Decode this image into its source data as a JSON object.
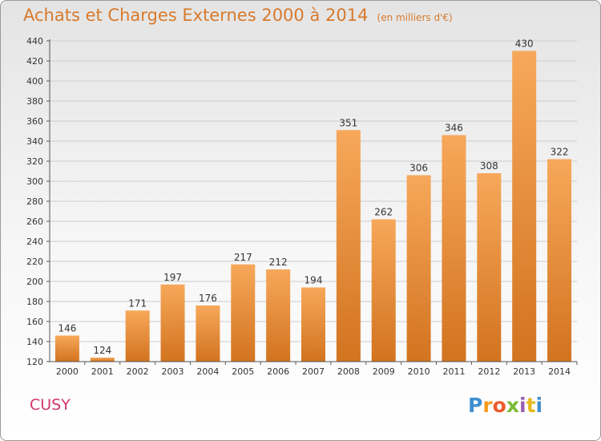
{
  "title": "Achats et Charges Externes 2000 à 2014",
  "subtitle": "(en milliers d'€)",
  "city": "CUSY",
  "logo": {
    "letters": [
      "P",
      "r",
      "o",
      "x",
      "i",
      "t",
      "i"
    ],
    "colors": [
      "#3f8fd0",
      "#f39a1e",
      "#ec5a2a",
      "#7bbb35",
      "#9a5fb0",
      "#e8b81e",
      "#3f8fd0"
    ]
  },
  "colors": {
    "bar_light": "#f7a85a",
    "bar_dark": "#d2731f",
    "title": "#d87a2c",
    "city": "#d3366f",
    "grid": "#cccccc"
  },
  "chart_data": {
    "type": "bar",
    "title": "Achats et Charges Externes 2000 à 2014",
    "subtitle": "(en milliers d'€)",
    "categories": [
      "2000",
      "2001",
      "2002",
      "2003",
      "2004",
      "2005",
      "2006",
      "2007",
      "2008",
      "2009",
      "2010",
      "2011",
      "2012",
      "2013",
      "2014"
    ],
    "values": [
      146,
      124,
      171,
      197,
      176,
      217,
      212,
      194,
      351,
      262,
      306,
      346,
      308,
      430,
      322
    ],
    "ylim": [
      120,
      440
    ],
    "yticks": [
      120,
      140,
      160,
      180,
      200,
      220,
      240,
      260,
      280,
      300,
      320,
      340,
      360,
      380,
      400,
      420,
      440
    ],
    "grid": true,
    "legend": "none"
  }
}
